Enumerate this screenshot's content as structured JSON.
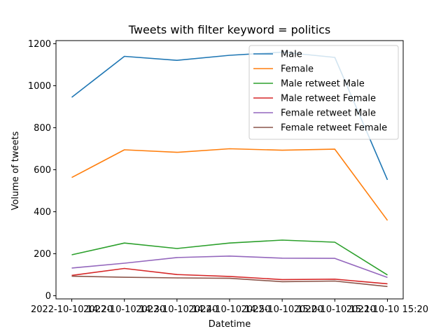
{
  "chart_data": {
    "type": "line",
    "title": "Tweets with filter keyword = politics",
    "xlabel": "Datetime",
    "ylabel": "Volume of tweets",
    "categories": [
      "2022-10-10 14:20",
      "2022-10-10 14:30",
      "2022-10-10 14:40",
      "2022-10-10 14:50",
      "2022-10-10 15:00",
      "2022-10-10 15:10",
      "2022-10-10 15:20"
    ],
    "ylim": [
      -15,
      1215
    ],
    "yticks": [
      0,
      200,
      400,
      600,
      800,
      1000,
      1200
    ],
    "grid": false,
    "legend_position": "upper right",
    "series": [
      {
        "name": "Male",
        "color": "#1f77b4",
        "values": [
          945,
          1140,
          1121,
          1145,
          1160,
          1135,
          552
        ]
      },
      {
        "name": "Female",
        "color": "#ff7f0e",
        "values": [
          563,
          695,
          683,
          700,
          693,
          698,
          359
        ]
      },
      {
        "name": "Male retweet Male",
        "color": "#2ca02c",
        "values": [
          195,
          251,
          225,
          251,
          265,
          255,
          99
        ]
      },
      {
        "name": "Male retweet Female",
        "color": "#d62728",
        "values": [
          97,
          130,
          101,
          92,
          77,
          79,
          57
        ]
      },
      {
        "name": "Female retweet Male",
        "color": "#9467bd",
        "values": [
          132,
          155,
          182,
          189,
          179,
          178,
          87
        ]
      },
      {
        "name": "Female retweet Female",
        "color": "#8c564b",
        "values": [
          93,
          88,
          85,
          83,
          67,
          70,
          44
        ]
      }
    ]
  }
}
